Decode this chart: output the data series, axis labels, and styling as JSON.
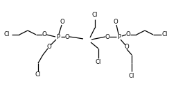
{
  "bg_color": "#ffffff",
  "line_color": "#000000",
  "text_color": "#000000",
  "font_size": 6.2,
  "line_width": 0.9,
  "figsize": [
    2.55,
    1.24
  ],
  "dpi": 100,
  "xlim": [
    0,
    255
  ],
  "ylim": [
    0,
    124
  ]
}
